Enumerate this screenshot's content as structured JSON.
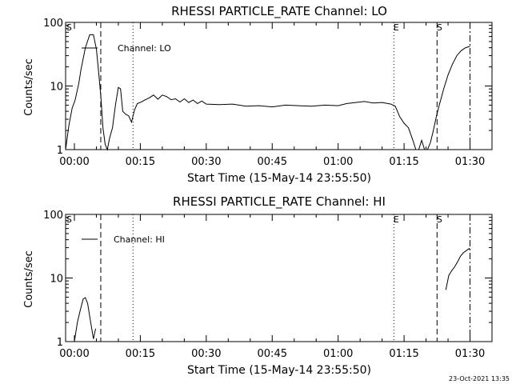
{
  "footer": {
    "timestamp": "23-Oct-2021 13:35"
  },
  "chart_data": [
    {
      "type": "line",
      "title": "RHESSI PARTICLE_RATE Channel: LO",
      "xlabel": "Start Time (15-May-14 23:55:50)",
      "ylabel": "Counts/sec",
      "y_scale": "log",
      "ylim": [
        1,
        100
      ],
      "xlim": [
        "23:58:00",
        "01:35:00"
      ],
      "x_ticks": [
        "00:00",
        "00:15",
        "00:30",
        "00:45",
        "01:00",
        "01:15",
        "01:30"
      ],
      "y_ticks": [
        "1",
        "10",
        "100"
      ],
      "legend": {
        "labels": [
          "Channel: LO"
        ],
        "position": "top-left"
      },
      "markers": [
        {
          "time": "23:58:15",
          "style": "none",
          "label": "S"
        },
        {
          "time": "00:06:00",
          "style": "dashed",
          "label": ""
        },
        {
          "time": "00:13:20",
          "style": "dotted",
          "label": ""
        },
        {
          "time": "01:12:40",
          "style": "dotted",
          "label": "E"
        },
        {
          "time": "01:22:30",
          "style": "dashed",
          "label": "S"
        },
        {
          "time": "01:30:00",
          "style": "dashdot",
          "label": ""
        }
      ],
      "series": [
        {
          "name": "Channel: LO",
          "x": [
            "23:58:00",
            "23:58:45",
            "23:59:30",
            "00:00:10",
            "00:01:00",
            "00:01:30",
            "00:02:30",
            "00:03:30",
            "00:04:20",
            "00:05:00",
            "00:05:30",
            "00:06:00",
            "00:06:30",
            "00:07:00",
            "00:07:30",
            "00:08:00",
            "00:08:40",
            "00:09:20",
            "00:10:00",
            "00:10:30",
            "00:11:00",
            "00:11:40",
            "00:12:20",
            "00:13:00",
            "00:13:40",
            "00:14:20",
            "00:15:00",
            "00:16:00",
            "00:17:00",
            "00:18:00",
            "00:19:00",
            "00:20:00",
            "00:21:00",
            "00:22:00",
            "00:23:00",
            "00:24:00",
            "00:25:00",
            "00:26:00",
            "00:27:00",
            "00:28:00",
            "00:29:00",
            "00:30:00",
            "00:33:00",
            "00:36:00",
            "00:39:00",
            "00:42:00",
            "00:45:00",
            "00:48:00",
            "00:51:00",
            "00:54:00",
            "00:57:00",
            "01:00:00",
            "01:02:00",
            "01:04:00",
            "01:06:00",
            "01:08:00",
            "01:10:00",
            "01:12:00",
            "01:13:00",
            "01:14:00",
            "01:15:00",
            "01:16:00",
            "01:17:00",
            "01:17:40",
            "01:18:20",
            "01:19:00",
            "01:19:40",
            "01:20:20",
            "01:21:00",
            "01:21:40",
            "01:22:20",
            "01:23:00",
            "01:24:00",
            "01:25:00",
            "01:26:00",
            "01:27:00",
            "01:28:00",
            "01:29:00",
            "01:30:00"
          ],
          "y": [
            1,
            2.4,
            4.5,
            6,
            11,
            18,
            40,
            64,
            64,
            38,
            17,
            7,
            2.2,
            1.2,
            1,
            1.5,
            2.2,
            5,
            9.5,
            9,
            4,
            3.6,
            3.4,
            2.7,
            4.2,
            5.3,
            5.5,
            6,
            6.5,
            7.2,
            6.2,
            7.2,
            6.8,
            6.1,
            6.3,
            5.6,
            6.3,
            5.5,
            6,
            5.3,
            5.8,
            5.2,
            5.1,
            5.2,
            4.8,
            4.9,
            4.7,
            5,
            4.9,
            4.8,
            5,
            4.9,
            5.3,
            5.5,
            5.7,
            5.4,
            5.5,
            5.2,
            4.8,
            3.3,
            2.6,
            2.2,
            1.4,
            1,
            1,
            1.4,
            1,
            1,
            1.3,
            2,
            3.3,
            5,
            9,
            15,
            22,
            30,
            36,
            40,
            42
          ]
        }
      ]
    },
    {
      "type": "line",
      "title": "RHESSI PARTICLE_RATE Channel: HI",
      "xlabel": "Start Time (15-May-14 23:55:50)",
      "ylabel": "Counts/sec",
      "y_scale": "log",
      "ylim": [
        1,
        100
      ],
      "xlim": [
        "23:58:00",
        "01:35:00"
      ],
      "x_ticks": [
        "00:00",
        "00:15",
        "00:30",
        "00:45",
        "01:00",
        "01:15",
        "01:30"
      ],
      "y_ticks": [
        "1",
        "10",
        "100"
      ],
      "legend": {
        "labels": [
          "Channel: HI"
        ],
        "position": "top-left"
      },
      "markers": [
        {
          "time": "23:58:15",
          "style": "none",
          "label": "S"
        },
        {
          "time": "00:06:00",
          "style": "dashed",
          "label": ""
        },
        {
          "time": "00:13:20",
          "style": "dotted",
          "label": ""
        },
        {
          "time": "01:12:40",
          "style": "dotted",
          "label": "E"
        },
        {
          "time": "01:22:30",
          "style": "dashed",
          "label": "S"
        },
        {
          "time": "01:30:00",
          "style": "dashdot",
          "label": ""
        }
      ],
      "series": [
        {
          "name": "Channel: HI",
          "segments": [
            {
              "x": [
                "00:00:00",
                "00:00:40",
                "00:01:20",
                "00:02:00",
                "00:02:30",
                "00:03:00",
                "00:03:40",
                "00:04:20",
                "00:04:50"
              ],
              "y": [
                1,
                2,
                3.1,
                4.7,
                4.9,
                4,
                2.1,
                1.1,
                1.6
              ]
            },
            {
              "x": [
                "01:24:30",
                "01:25:10",
                "01:25:50",
                "01:26:30",
                "01:27:10",
                "01:27:50",
                "01:28:30",
                "01:29:10",
                "01:29:50",
                "01:30:00"
              ],
              "y": [
                6.5,
                11,
                13,
                15,
                18,
                22,
                25,
                27,
                29,
                28
              ]
            }
          ]
        }
      ]
    }
  ]
}
